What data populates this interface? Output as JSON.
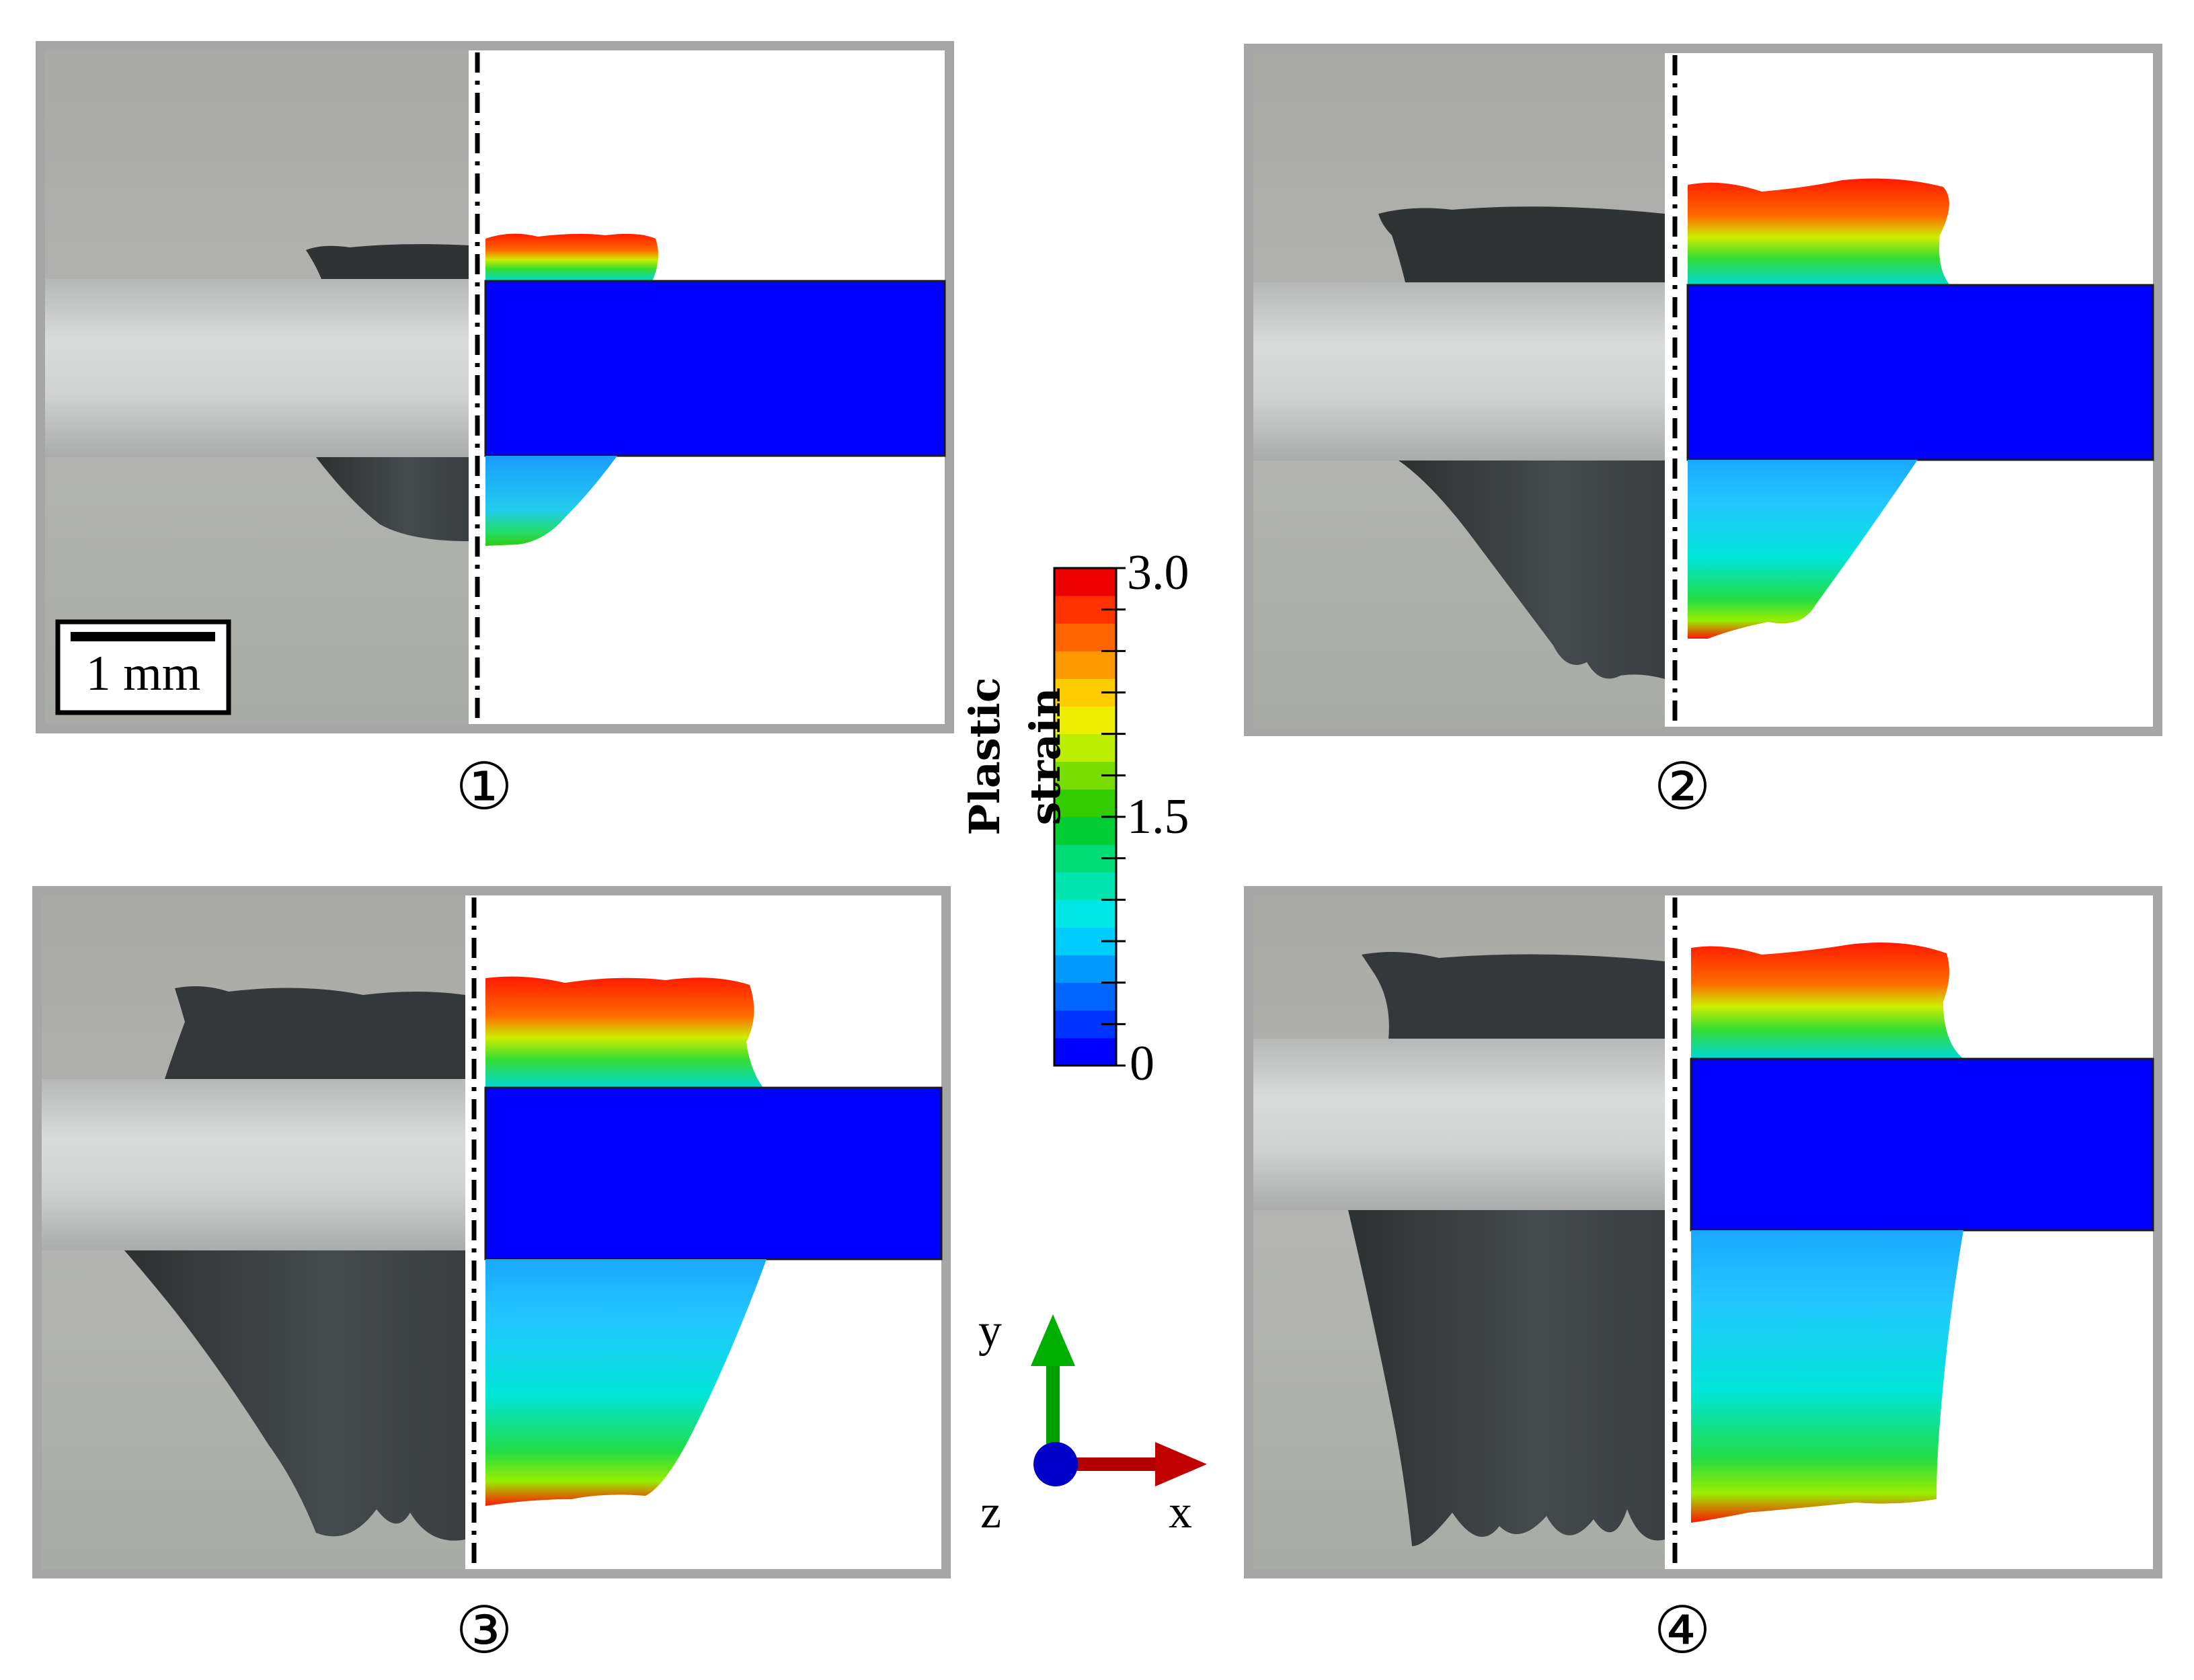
{
  "panels": [
    {
      "label": "①"
    },
    {
      "label": "②"
    },
    {
      "label": "③"
    },
    {
      "label": "④"
    }
  ],
  "scale_bar": {
    "label": "1 mm"
  },
  "colorbar": {
    "title": "Plastic strain",
    "min": 0,
    "max": 3.0,
    "ticks": [
      "3.0",
      "1.5",
      "0"
    ],
    "colors": [
      "#0000ff",
      "#0033ff",
      "#0066ff",
      "#0099ff",
      "#00ccff",
      "#00e5e5",
      "#00e5b0",
      "#00dd77",
      "#00cc33",
      "#33cc00",
      "#77dd00",
      "#bbee00",
      "#eeee00",
      "#ffcc00",
      "#ff9900",
      "#ff6600",
      "#ff3300",
      "#ee0000"
    ]
  },
  "axes": {
    "x": "x",
    "y": "y",
    "z": "z"
  },
  "colors": {
    "x_axis": "#c00000",
    "y_axis": "#00a000",
    "z_axis": "#0000c8",
    "bar": "#0000ff",
    "frame": "#a6a6a6"
  }
}
